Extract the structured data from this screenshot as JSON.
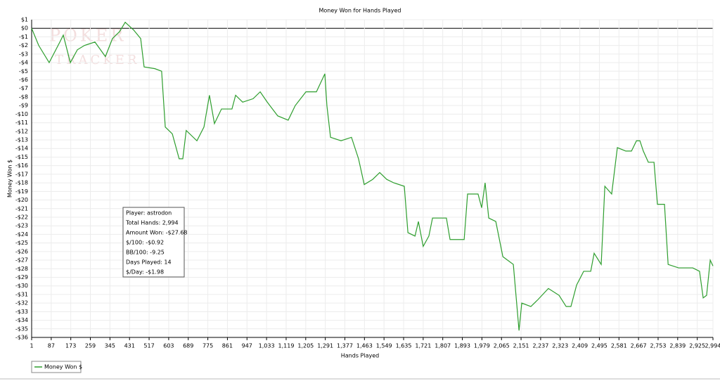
{
  "chart_data": {
    "type": "line",
    "title": "Money Won for Hands Played",
    "x_label": "Hands Played",
    "y_label": "Money Won $",
    "watermark": [
      "POKER",
      "TRACKER"
    ],
    "x": [
      1,
      32,
      78,
      125,
      140,
      171,
      202,
      233,
      279,
      325,
      356,
      387,
      412,
      449,
      480,
      495,
      542,
      572,
      588,
      619,
      649,
      665,
      680,
      727,
      758,
      782,
      804,
      835,
      881,
      897,
      928,
      974,
      1005,
      1036,
      1082,
      1128,
      1159,
      1206,
      1252,
      1289,
      1298,
      1314,
      1360,
      1406,
      1437,
      1462,
      1499,
      1530,
      1561,
      1592,
      1638,
      1654,
      1685,
      1700,
      1721,
      1746,
      1762,
      1823,
      1839,
      1901,
      1916,
      1962,
      1978,
      1993,
      2009,
      2040,
      2071,
      2117,
      2142,
      2154,
      2194,
      2225,
      2271,
      2318,
      2349,
      2370,
      2395,
      2426,
      2457,
      2472,
      2503,
      2519,
      2549,
      2574,
      2611,
      2636,
      2658,
      2673,
      2688,
      2710,
      2735,
      2750,
      2781,
      2797,
      2843,
      2905,
      2935,
      2951,
      2966,
      2982,
      2994
    ],
    "series": [
      {
        "name": "Money Won $",
        "color": "#2e9e2e",
        "values": [
          0,
          -2,
          -4,
          -1.6,
          -0.8,
          -4,
          -2.5,
          -2,
          -1.6,
          -3.3,
          -1.2,
          -0.4,
          0.7,
          -0.2,
          -1.2,
          -4.5,
          -4.7,
          -5,
          -11.5,
          -12.3,
          -15.2,
          -15.2,
          -11.9,
          -13.1,
          -11.5,
          -7.8,
          -11.1,
          -9.4,
          -9.4,
          -7.8,
          -8.6,
          -8.2,
          -7.4,
          -8.6,
          -10.2,
          -10.7,
          -9,
          -7.4,
          -7.4,
          -5.3,
          -9,
          -12.7,
          -13.1,
          -12.7,
          -15.2,
          -18.2,
          -17.6,
          -16.8,
          -17.6,
          -18,
          -18.4,
          -23.8,
          -24.2,
          -22.5,
          -25.4,
          -24.2,
          -22.1,
          -22.1,
          -24.6,
          -24.6,
          -19.3,
          -19.3,
          -20.9,
          -18,
          -22.1,
          -22.5,
          -26.6,
          -27.5,
          -35.2,
          -32,
          -32.4,
          -31.6,
          -30.3,
          -31.1,
          -32.4,
          -32.4,
          -29.9,
          -28.3,
          -28.3,
          -26.2,
          -27.5,
          -18.4,
          -19.3,
          -13.9,
          -14.3,
          -14.3,
          -13.1,
          -13.1,
          -14.3,
          -15.6,
          -15.6,
          -20.5,
          -20.5,
          -27.5,
          -27.9,
          -27.9,
          -28.3,
          -31.4,
          -31.1,
          -27,
          -27.68
        ]
      }
    ],
    "xlim": [
      1,
      2994
    ],
    "xticks": [
      1,
      87,
      173,
      259,
      345,
      431,
      517,
      603,
      689,
      775,
      861,
      947,
      {
        "value": 1033,
        "label": "1,033"
      },
      {
        "value": 1119,
        "label": "1,119"
      },
      {
        "value": 1205,
        "label": "1,205"
      },
      {
        "value": 1291,
        "label": "1,291"
      },
      {
        "value": 1377,
        "label": "1,377"
      },
      {
        "value": 1463,
        "label": "1,463"
      },
      {
        "value": 1549,
        "label": "1,549"
      },
      {
        "value": 1635,
        "label": "1,635"
      },
      {
        "value": 1721,
        "label": "1,721"
      },
      {
        "value": 1807,
        "label": "1,807"
      },
      {
        "value": 1893,
        "label": "1,893"
      },
      {
        "value": 1979,
        "label": "1,979"
      },
      {
        "value": 2065,
        "label": "2,065"
      },
      {
        "value": 2151,
        "label": "2,151"
      },
      {
        "value": 2237,
        "label": "2,237"
      },
      {
        "value": 2323,
        "label": "2,323"
      },
      {
        "value": 2409,
        "label": "2,409"
      },
      {
        "value": 2495,
        "label": "2,495"
      },
      {
        "value": 2581,
        "label": "2,581"
      },
      {
        "value": 2667,
        "label": "2,667"
      },
      {
        "value": 2753,
        "label": "2,753"
      },
      {
        "value": 2839,
        "label": "2,839"
      },
      {
        "value": 2925,
        "label": "2,925"
      },
      {
        "value": 2994,
        "label": "2,994"
      }
    ],
    "ylim": [
      -36,
      1
    ],
    "yticks": [
      {
        "value": 1,
        "label": "$1"
      },
      {
        "value": 0,
        "label": "$0"
      },
      {
        "value": -1,
        "label": "-$1"
      },
      {
        "value": -2,
        "label": "-$2"
      },
      {
        "value": -3,
        "label": "-$3"
      },
      {
        "value": -4,
        "label": "-$4"
      },
      {
        "value": -5,
        "label": "-$5"
      },
      {
        "value": -6,
        "label": "-$6"
      },
      {
        "value": -7,
        "label": "-$7"
      },
      {
        "value": -8,
        "label": "-$8"
      },
      {
        "value": -9,
        "label": "-$9"
      },
      {
        "value": -10,
        "label": "-$10"
      },
      {
        "value": -11,
        "label": "-$11"
      },
      {
        "value": -12,
        "label": "-$12"
      },
      {
        "value": -13,
        "label": "-$13"
      },
      {
        "value": -14,
        "label": "-$14"
      },
      {
        "value": -15,
        "label": "-$15"
      },
      {
        "value": -16,
        "label": "-$16"
      },
      {
        "value": -17,
        "label": "-$17"
      },
      {
        "value": -18,
        "label": "-$18"
      },
      {
        "value": -19,
        "label": "-$19"
      },
      {
        "value": -20,
        "label": "-$20"
      },
      {
        "value": -21,
        "label": "-$21"
      },
      {
        "value": -22,
        "label": "-$22"
      },
      {
        "value": -23,
        "label": "-$23"
      },
      {
        "value": -24,
        "label": "-$24"
      },
      {
        "value": -25,
        "label": "-$25"
      },
      {
        "value": -26,
        "label": "-$26"
      },
      {
        "value": -27,
        "label": "-$27"
      },
      {
        "value": -28,
        "label": "-$28"
      },
      {
        "value": -29,
        "label": "-$29"
      },
      {
        "value": -30,
        "label": "-$30"
      },
      {
        "value": -31,
        "label": "-$31"
      },
      {
        "value": -32,
        "label": "-$32"
      },
      {
        "value": -33,
        "label": "-$33"
      },
      {
        "value": -34,
        "label": "-$34"
      },
      {
        "value": -35,
        "label": "-$35"
      },
      {
        "value": -36,
        "label": "-$36"
      }
    ],
    "grid": true,
    "tooltip": [
      "Player: astrodon",
      "Total Hands: 2,994",
      "Amount Won: -$27.68",
      "$/100: -$0.92",
      "BB/100: -9.25",
      "Days Played: 14",
      "$/Day: -$1.98"
    ]
  }
}
